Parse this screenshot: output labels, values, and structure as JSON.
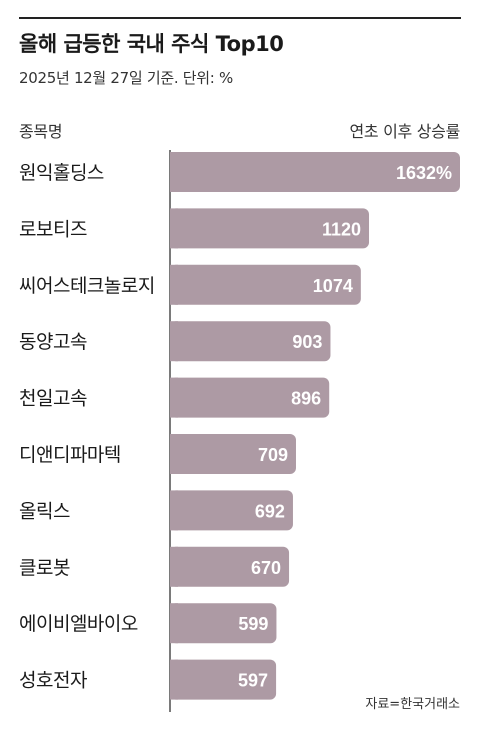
{
  "chart_data": {
    "type": "bar",
    "orientation": "horizontal",
    "title": "올해 급등한 국내 주식 Top10",
    "subtitle": "2025년 12월 27일 기준. 단위: %",
    "category_header": "종목명",
    "value_header": "연초 이후 상승률",
    "categories": [
      "원익홀딩스",
      "로보티즈",
      "씨어스테크놀로지",
      "동양고속",
      "천일고속",
      "디앤디파마텍",
      "올릭스",
      "클로봇",
      "에이비엘바이오",
      "성호전자"
    ],
    "values": [
      1632,
      1120,
      1074,
      903,
      896,
      709,
      692,
      670,
      599,
      597
    ],
    "value_labels": [
      "1632%",
      "1120",
      "1074",
      "903",
      "896",
      "709",
      "692",
      "670",
      "599",
      "597"
    ],
    "source": "자료=한국거래소",
    "grid": false,
    "colors": {
      "bar": "#ad9aa4",
      "bar_label": "#ffffff",
      "axis": "#222222"
    }
  }
}
